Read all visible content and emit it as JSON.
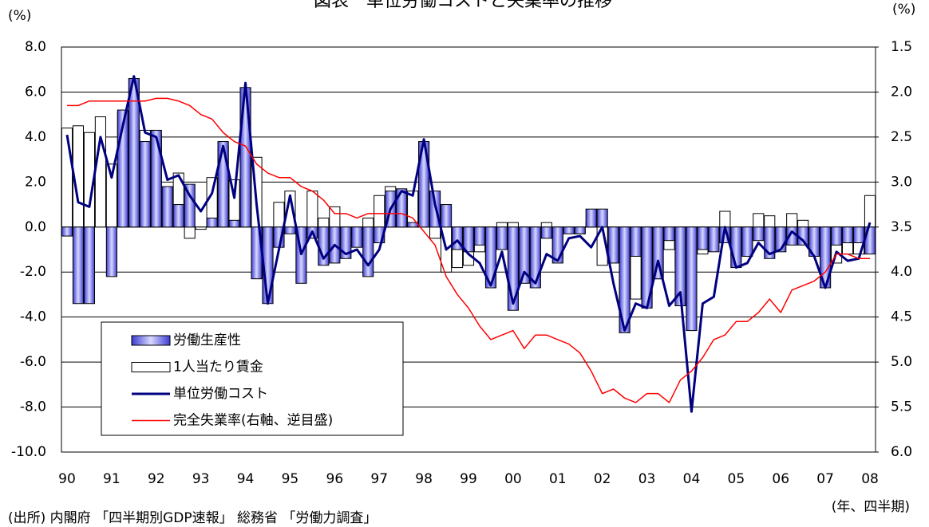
{
  "chart_data": {
    "type": "bar",
    "title": "図表　単位労働コストと失業率の推移",
    "y_label": "(%)",
    "y2_label": "(%)",
    "x_label": "(年、四半期)",
    "source": "(出所) 内閣府 「四半期別GDP速報」 総務省 「労働力調査」",
    "categories": [
      "90",
      null,
      null,
      null,
      "91",
      null,
      null,
      null,
      "92",
      null,
      null,
      null,
      "93",
      null,
      null,
      null,
      "94",
      null,
      null,
      null,
      "95",
      null,
      null,
      null,
      "96",
      null,
      null,
      null,
      "97",
      null,
      null,
      null,
      "98",
      null,
      null,
      null,
      "99",
      null,
      null,
      null,
      "00",
      null,
      null,
      null,
      "01",
      null,
      null,
      null,
      "02",
      null,
      null,
      null,
      "03",
      null,
      null,
      null,
      "04",
      null,
      null,
      null,
      "05",
      null,
      null,
      null,
      "06",
      null,
      null,
      null,
      "07",
      null,
      null,
      null,
      "08"
    ],
    "ylim": [
      -10,
      8
    ],
    "yticks": [
      {
        "value": 8,
        "label": "8.0"
      },
      {
        "value": 6,
        "label": "6.0"
      },
      {
        "value": 4,
        "label": "4.0"
      },
      {
        "value": 2,
        "label": "2.0"
      },
      {
        "value": 0,
        "label": "0.0"
      },
      {
        "value": -2,
        "label": "-2.0"
      },
      {
        "value": -4,
        "label": "-4.0"
      },
      {
        "value": -6,
        "label": "-6.0"
      },
      {
        "value": -8,
        "label": "-8.0"
      },
      {
        "value": -10,
        "label": "-10.0"
      }
    ],
    "y2lim": [
      6,
      1.5
    ],
    "y2ticks": [
      1.5,
      {
        "value": 2,
        "label": "2.0"
      },
      2.5,
      {
        "value": 3,
        "label": "3.0"
      },
      3.5,
      {
        "value": 4,
        "label": "4.0"
      },
      4.5,
      {
        "value": 5,
        "label": "5.0"
      },
      5.5,
      {
        "value": 6,
        "label": "6.0"
      }
    ],
    "grid": true,
    "series": [
      {
        "name": "1人当たり賃金",
        "type": "bar",
        "color": "#ffffff",
        "values": [
          4.4,
          4.5,
          4.2,
          4.9,
          2.8,
          5.1,
          4.8,
          4.3,
          4.1,
          1.0,
          2.4,
          -0.5,
          -0.1,
          2.2,
          3.6,
          2.1,
          2.2,
          3.1,
          -1.0,
          1.1,
          1.6,
          -0.3,
          1.6,
          0.4,
          0.9,
          -0.4,
          -0.1,
          0.4,
          1.4,
          1.8,
          1.4,
          1.6,
          1.6,
          -0.5,
          -2.0,
          -1.8,
          -1.7,
          -1.1,
          -1.6,
          0.2,
          0.2,
          -0.2,
          -1.5,
          0.2,
          -1.4,
          -0.2,
          -0.3,
          0.2,
          -1.7,
          -1.0,
          -3.2,
          -3.2,
          -3.0,
          -2.3,
          -1.0,
          -1.7,
          -1.7,
          -1.2,
          -0.6,
          0.7,
          -1.3,
          -1.0,
          0.6,
          0.5,
          -0.6,
          0.6,
          0.3,
          -0.1,
          -1.1,
          -1.6,
          -1.2,
          -1.2,
          1.4
        ]
      },
      {
        "name": "労働生産性",
        "type": "bar",
        "color": "#5a5ae6",
        "values": [
          -0.4,
          -3.4,
          -3.4,
          0.0,
          -2.2,
          5.2,
          6.6,
          3.8,
          4.3,
          1.8,
          1.0,
          1.9,
          0.0,
          0.4,
          3.8,
          0.3,
          6.2,
          -2.3,
          -3.4,
          -0.9,
          -0.3,
          -2.5,
          -0.5,
          -1.7,
          -1.6,
          -1.4,
          -0.9,
          -2.2,
          -0.7,
          1.6,
          1.7,
          0.2,
          3.8,
          1.6,
          1.0,
          -1.0,
          -1.1,
          -0.8,
          -2.7,
          -1.0,
          -3.7,
          -2.5,
          -2.7,
          -0.5,
          -1.6,
          -0.3,
          -0.3,
          0.8,
          0.8,
          -1.6,
          -4.7,
          -1.3,
          -3.6,
          -2.3,
          -0.6,
          -3.5,
          -4.6,
          -1.0,
          -1.1,
          -0.7,
          -1.8,
          -1.3,
          -0.6,
          -1.4,
          -1.1,
          -0.8,
          -0.8,
          -1.3,
          -2.7,
          -0.8,
          -0.7,
          -0.7,
          -1.2
        ]
      },
      {
        "name": "単位労働コスト",
        "type": "line",
        "color": "#000080",
        "values": [
          4.1,
          1.1,
          0.9,
          4.0,
          2.2,
          4.5,
          6.7,
          4.2,
          4.0,
          2.1,
          2.3,
          1.4,
          0.7,
          1.5,
          3.6,
          1.3,
          6.4,
          1.0,
          -3.4,
          -1.0,
          1.4,
          -1.2,
          -0.2,
          -1.4,
          -0.8,
          -1.2,
          -1.0,
          -1.7,
          -1.0,
          0.8,
          1.6,
          1.4,
          3.9,
          1.0,
          -1.0,
          -0.6,
          -1.2,
          -1.6,
          -2.6,
          -1.1,
          -3.4,
          -2.0,
          -2.5,
          -1.2,
          -1.5,
          -0.5,
          -0.4,
          -0.9,
          0.0,
          -2.5,
          -4.6,
          -3.4,
          -3.6,
          -1.5,
          -3.5,
          -2.9,
          -8.2,
          -3.4,
          -3.1,
          0.0,
          -1.8,
          -1.6,
          -0.7,
          -1.2,
          -1.0,
          -0.2,
          -0.6,
          -1.3,
          -2.7,
          -1.1,
          -1.5,
          -1.4,
          0.2
        ]
      },
      {
        "name": "完全失業率(右軸、逆目盛)",
        "type": "line",
        "axis": "y2",
        "color": "#ff0000",
        "values": [
          2.15,
          2.15,
          2.1,
          2.1,
          2.1,
          2.1,
          2.1,
          2.1,
          2.07,
          2.07,
          2.1,
          2.15,
          2.25,
          2.3,
          2.45,
          2.55,
          2.6,
          2.8,
          2.9,
          2.95,
          2.95,
          3.05,
          3.1,
          3.2,
          3.35,
          3.35,
          3.4,
          3.35,
          3.35,
          3.35,
          3.35,
          3.4,
          3.55,
          3.7,
          4.05,
          4.25,
          4.4,
          4.6,
          4.75,
          4.7,
          4.65,
          4.85,
          4.7,
          4.7,
          4.75,
          4.8,
          4.9,
          5.1,
          5.35,
          5.3,
          5.4,
          5.45,
          5.35,
          5.35,
          5.45,
          5.2,
          5.1,
          4.95,
          4.75,
          4.7,
          4.55,
          4.55,
          4.45,
          4.3,
          4.45,
          4.2,
          4.15,
          4.1,
          4.0,
          3.8,
          3.8,
          3.85,
          3.85
        ]
      }
    ]
  }
}
